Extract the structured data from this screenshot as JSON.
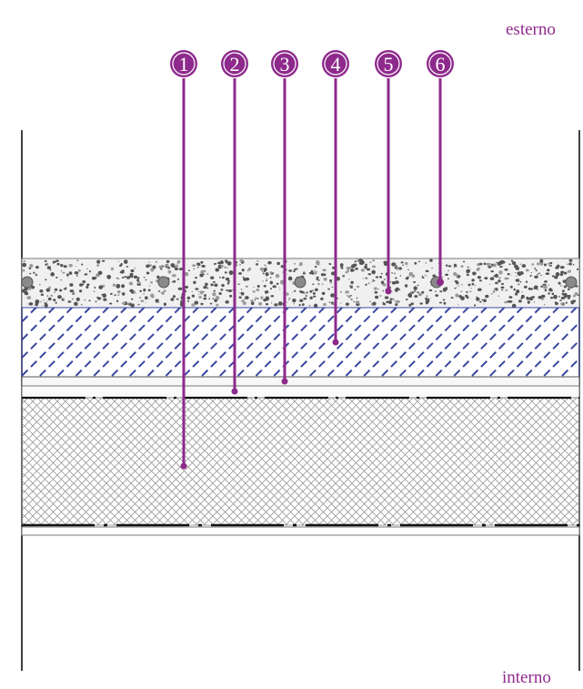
{
  "labels": {
    "outside": "esterno",
    "inside": "interno"
  },
  "markers": [
    {
      "number": "1"
    },
    {
      "number": "2"
    },
    {
      "number": "3"
    },
    {
      "number": "4"
    },
    {
      "number": "5"
    },
    {
      "number": "6"
    }
  ],
  "colors": {
    "accent": "#8e2a8c",
    "insulation_hatch": "#3a46a0",
    "gravel_fill": "#f0f0f0",
    "gravel_dots": "#555555",
    "crosshatch": "#9a9a9a",
    "line": "#111111"
  }
}
